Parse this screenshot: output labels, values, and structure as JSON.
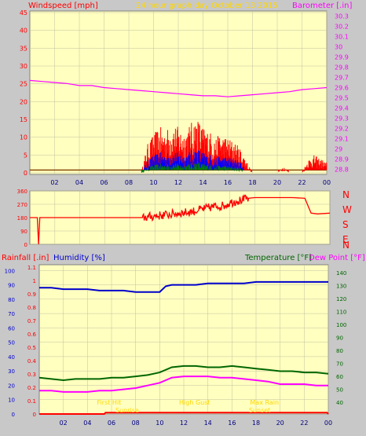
{
  "title": "24 hour graph day  October 13 2015",
  "colors": {
    "page_bg": "#ffffff",
    "outer_bg": "#c8c8c8",
    "plot_bg": "#ffffc0",
    "grid": "#c0c0a0",
    "frame": "#808080",
    "wind": "#ff0000",
    "gust": "#0000ff",
    "avg": "#008000",
    "baro": "#ff00ff",
    "dir": "#ff0000",
    "rain": "#ff0000",
    "humidity": "#0000cc",
    "temp": "#006600",
    "dew": "#ff00ff",
    "markers": "#ffd700"
  },
  "chart_data": [
    {
      "type": "line",
      "left_label": "Windspeed [mph]",
      "right_label": "Barometer [.in]",
      "x_ticks": [
        "02",
        "04",
        "06",
        "08",
        "10",
        "12",
        "14",
        "16",
        "18",
        "20",
        "22",
        "00"
      ],
      "ylim_left": [
        0,
        45
      ],
      "left_ticks": [
        "0",
        "5",
        "10",
        "15",
        "20",
        "25",
        "30",
        "35",
        "40",
        "45"
      ],
      "ylim_right": [
        28.75,
        30.35
      ],
      "right_ticks": [
        "28.8",
        "28.9",
        "29",
        "29.1",
        "29.2",
        "29.3",
        "29.4",
        "29.5",
        "29.6",
        "29.7",
        "29.8",
        "29.9",
        "30",
        "30.1",
        "30.2",
        "30.3"
      ],
      "barometer": {
        "x": [
          0,
          1,
          2,
          3,
          4,
          5,
          6,
          7,
          8,
          9,
          10,
          11,
          12,
          13,
          14,
          15,
          16,
          17,
          18,
          19,
          20,
          21,
          22,
          23,
          24
        ],
        "y": [
          29.67,
          29.66,
          29.65,
          29.64,
          29.62,
          29.62,
          29.6,
          29.59,
          29.58,
          29.57,
          29.56,
          29.55,
          29.54,
          29.53,
          29.52,
          29.52,
          29.51,
          29.52,
          29.53,
          29.54,
          29.55,
          29.56,
          29.58,
          29.59,
          29.6
        ]
      },
      "wind_envelope": {
        "x": [
          0,
          9,
          9.5,
          10,
          10.5,
          11,
          11.5,
          12,
          12.5,
          13,
          13.5,
          14,
          14.5,
          15,
          15.5,
          16,
          16.5,
          17,
          17.3,
          18,
          20,
          20.5,
          21,
          22,
          22.5,
          23,
          24
        ],
        "max": [
          0,
          0,
          8,
          11,
          13,
          12,
          14,
          13,
          12,
          14,
          16,
          13,
          12,
          10,
          11,
          10,
          9,
          7,
          5,
          0,
          0,
          2,
          0,
          0,
          4,
          5,
          3
        ]
      },
      "wind_baseline": 0.8
    },
    {
      "type": "line",
      "right_letters": [
        "N",
        "W",
        "S",
        "E",
        "N"
      ],
      "ylim": [
        0,
        360
      ],
      "ticks": [
        "0",
        "90",
        "180",
        "270",
        "360"
      ],
      "x": [
        0,
        0.6,
        0.7,
        0.8,
        1,
        9,
        9.5,
        10,
        10.5,
        11,
        11.5,
        12,
        12.5,
        13,
        13.5,
        14,
        14.5,
        15,
        15.5,
        16,
        16.5,
        17,
        17.5,
        18,
        19,
        20,
        21,
        22,
        22.3,
        22.5,
        23,
        24
      ],
      "y": [
        180,
        180,
        0,
        180,
        180,
        180,
        185,
        190,
        195,
        200,
        205,
        210,
        215,
        220,
        230,
        240,
        250,
        255,
        260,
        280,
        290,
        300,
        310,
        315,
        315,
        315,
        315,
        310,
        250,
        210,
        205,
        210
      ]
    },
    {
      "type": "line",
      "left_labels": [
        "Rainfall [.in]",
        "Humidity [%]"
      ],
      "right_labels": [
        "Temperature [°F]",
        "Dew Point [°F]"
      ],
      "x_ticks": [
        "02",
        "04",
        "06",
        "08",
        "10",
        "12",
        "14",
        "16",
        "18",
        "20",
        "22",
        "00"
      ],
      "rain_ticks": [
        "0",
        "0.1",
        "0.2",
        "0.3",
        "0.4",
        "0.5",
        "0.6",
        "0.7",
        "0.8",
        "0.9",
        "1",
        "1.1"
      ],
      "humidity_ticks": [
        "0",
        "10",
        "20",
        "30",
        "40",
        "50",
        "60",
        "70",
        "80",
        "90",
        "100"
      ],
      "temp_ticks": [
        "40",
        "50",
        "60",
        "70",
        "80",
        "90",
        "100",
        "110",
        "120",
        "130",
        "140"
      ],
      "ylim_humidity": [
        0,
        104
      ],
      "ylim_temp": [
        31,
        146
      ],
      "humidity": {
        "x": [
          0,
          1,
          2,
          3,
          4,
          5,
          6,
          7,
          8,
          9,
          9.5,
          10,
          10.5,
          11,
          12,
          13,
          14,
          15,
          16,
          17,
          18,
          19,
          20,
          21,
          22,
          23,
          24
        ],
        "y": [
          88,
          88,
          87,
          87,
          87,
          86,
          86,
          86,
          85,
          85,
          85,
          85,
          89,
          90,
          90,
          90,
          91,
          91,
          91,
          91,
          92,
          92,
          92,
          92,
          92,
          92,
          92
        ]
      },
      "temperature": {
        "x": [
          0,
          1,
          2,
          3,
          4,
          5,
          6,
          7,
          8,
          9,
          10,
          11,
          12,
          13,
          14,
          15,
          16,
          17,
          18,
          19,
          20,
          21,
          22,
          23,
          24
        ],
        "y": [
          59,
          58,
          57,
          58,
          58,
          58,
          59,
          59,
          60,
          61,
          63,
          67,
          68,
          68,
          67,
          67,
          68,
          67,
          66,
          65,
          64,
          64,
          63,
          63,
          62
        ]
      },
      "dew_point": {
        "x": [
          0,
          1,
          2,
          3,
          4,
          5,
          6,
          7,
          8,
          9,
          10,
          11,
          12,
          13,
          14,
          15,
          16,
          17,
          18,
          19,
          20,
          21,
          22,
          23,
          24
        ],
        "y": [
          49,
          49,
          48,
          48,
          48,
          49,
          49,
          50,
          51,
          53,
          55,
          59,
          60,
          60,
          60,
          59,
          59,
          58,
          57,
          56,
          54,
          54,
          54,
          53,
          53
        ]
      },
      "rainfall": {
        "x": [
          0,
          5.4,
          5.5,
          23.9,
          24
        ],
        "y": [
          0,
          0,
          0.01,
          0.01,
          0
        ]
      },
      "markers": [
        {
          "label": "First Hit",
          "x": 5.8
        },
        {
          "label": "Sunrise",
          "x": 7.3
        },
        {
          "label": "High Gust",
          "x": 12.9
        },
        {
          "label": "Sunset",
          "x": 18.3
        },
        {
          "label": "Max Rain",
          "x": 18.7
        }
      ]
    }
  ]
}
